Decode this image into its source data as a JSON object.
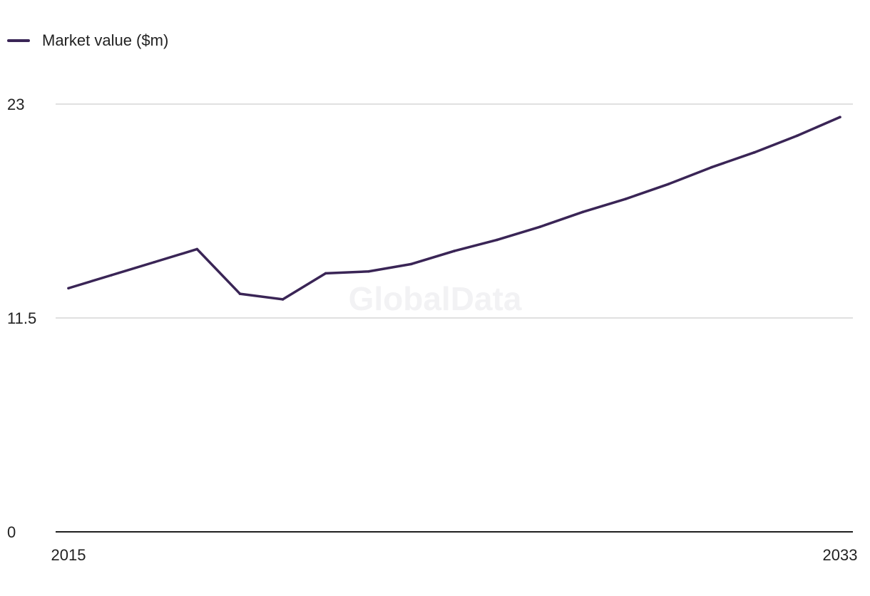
{
  "legend": {
    "label": "Market value ($m)"
  },
  "watermark": "GlobalData",
  "colors": {
    "series": "#3a2556",
    "grid": "#d6d6d6",
    "axis": "#1f1f1f"
  },
  "chart_data": {
    "type": "line",
    "title": "",
    "xlabel": "",
    "ylabel": "",
    "x": [
      2015,
      2016,
      2017,
      2018,
      2019,
      2020,
      2021,
      2022,
      2023,
      2024,
      2025,
      2026,
      2027,
      2028,
      2029,
      2030,
      2031,
      2032,
      2033
    ],
    "xlim": [
      2014.7,
      2033.3
    ],
    "ylim": [
      0,
      23
    ],
    "y_ticks": [
      "0",
      "11.5",
      "23"
    ],
    "x_tick_labels": [
      "2015",
      "2033"
    ],
    "grid": true,
    "legend_position": "top-left",
    "series": [
      {
        "name": "Market value ($m)",
        "values": [
          13.1,
          13.8,
          14.5,
          15.2,
          12.8,
          12.5,
          13.9,
          14.0,
          14.4,
          15.1,
          15.7,
          16.4,
          17.2,
          17.9,
          18.7,
          19.6,
          20.4,
          21.3,
          22.3
        ]
      }
    ]
  }
}
